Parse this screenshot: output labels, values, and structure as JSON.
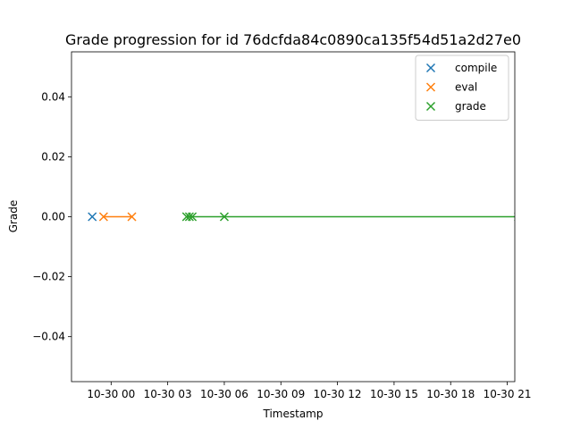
{
  "chart_data": {
    "type": "scatter",
    "title": "Grade progression for id 76dcfda84c0890ca135f54d51a2d27e0",
    "xlabel": "Timestamp",
    "ylabel": "Grade",
    "xlim": [
      -1.1,
      22.4
    ],
    "ylim": [
      -0.055,
      0.055
    ],
    "xticks": [
      {
        "value": 1.0,
        "label": "10-30 00"
      },
      {
        "value": 4.0,
        "label": "10-30 03"
      },
      {
        "value": 7.0,
        "label": "10-30 06"
      },
      {
        "value": 10.0,
        "label": "10-30 09"
      },
      {
        "value": 13.0,
        "label": "10-30 12"
      },
      {
        "value": 16.0,
        "label": "10-30 15"
      },
      {
        "value": 19.0,
        "label": "10-30 18"
      },
      {
        "value": 22.0,
        "label": "10-30 21"
      }
    ],
    "yticks": [
      {
        "value": -0.04,
        "label": "−0.04"
      },
      {
        "value": -0.02,
        "label": "−0.02"
      },
      {
        "value": 0.0,
        "label": "0.00"
      },
      {
        "value": 0.02,
        "label": "0.02"
      },
      {
        "value": 0.04,
        "label": "0.04"
      }
    ],
    "legend_position": "top-right",
    "series": [
      {
        "name": "compile",
        "color": "#1f77b4",
        "marker": "x",
        "line": false,
        "x": [
          0.0
        ],
        "y": [
          0.0
        ]
      },
      {
        "name": "eval",
        "color": "#ff7f0e",
        "marker": "x",
        "line": true,
        "x": [
          0.6,
          2.1
        ],
        "y": [
          0.0,
          0.0
        ]
      },
      {
        "name": "grade",
        "color": "#2ca02c",
        "marker": "x",
        "line": true,
        "x": [
          5.0,
          5.15,
          5.3,
          7.0,
          22.6
        ],
        "y": [
          0.0,
          0.0,
          0.0,
          0.0,
          0.0
        ]
      }
    ]
  }
}
